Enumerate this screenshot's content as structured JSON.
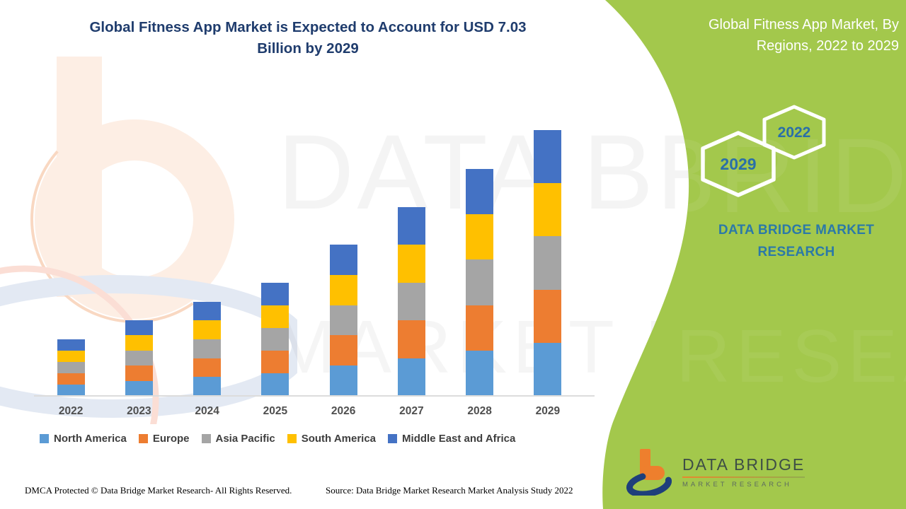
{
  "header": {
    "title_line1": "Global Fitness App Market is Expected to Account for USD 7.03",
    "title_line2": "Billion by 2029"
  },
  "side_panel": {
    "title_line1": "Global Fitness App Market, By",
    "title_line2": "Regions, 2022 to 2029",
    "hexagon_small_label": "2022",
    "hexagon_big_label": "2029",
    "brand_line1": "DATA BRIDGE MARKET",
    "brand_line2": "RESEARCH"
  },
  "logo": {
    "name": "DATA BRIDGE",
    "subtitle": "MARKET RESEARCH"
  },
  "watermarks": {
    "line1": "DATA BRIDGE",
    "line2": "MARKET RESEARCH"
  },
  "footer": {
    "left": "DMCA Protected © Data Bridge Market Research- All Rights Reserved.",
    "right": "Source: Data Bridge Market Research Market Analysis Study 2022"
  },
  "colors": {
    "panel_green": "#a3c84c",
    "title_blue": "#1f3c6d",
    "hexagon_text_blue": "#2a6fa8",
    "brand_text_blue": "#2b79a8",
    "logo_orange": "#ee7f2d",
    "logo_navy": "#1e3f7b",
    "axis_line_gray": "#dcdcdc"
  },
  "chart_data": {
    "type": "bar",
    "stacked": true,
    "title": "Global Fitness App Market is Expected to Account for USD 7.03 Billion by 2029",
    "unit": "USD Billion",
    "categories": [
      "2022",
      "2023",
      "2024",
      "2025",
      "2026",
      "2027",
      "2028",
      "2029"
    ],
    "totals": [
      1.5,
      2.0,
      2.5,
      3.0,
      4.0,
      5.0,
      6.0,
      7.03
    ],
    "series": [
      {
        "name": "North America",
        "color": "#5b9bd5",
        "values": [
          0.3,
          0.4,
          0.5,
          0.6,
          0.8,
          1.0,
          1.2,
          1.41
        ]
      },
      {
        "name": "Europe",
        "color": "#ed7d31",
        "values": [
          0.3,
          0.4,
          0.5,
          0.6,
          0.8,
          1.0,
          1.2,
          1.4
        ]
      },
      {
        "name": "Asia Pacific",
        "color": "#a5a5a5",
        "values": [
          0.3,
          0.4,
          0.5,
          0.6,
          0.8,
          1.0,
          1.2,
          1.41
        ]
      },
      {
        "name": "South America",
        "color": "#ffc000",
        "values": [
          0.3,
          0.4,
          0.5,
          0.6,
          0.8,
          1.0,
          1.2,
          1.4
        ]
      },
      {
        "name": "Middle East and Africa",
        "color": "#4472c4",
        "values": [
          0.3,
          0.4,
          0.5,
          0.6,
          0.8,
          1.0,
          1.2,
          1.41
        ]
      }
    ],
    "xlabel": "",
    "ylabel": "",
    "ylim": [
      0,
      7.5
    ],
    "grid": false,
    "legend_position": "bottom"
  }
}
